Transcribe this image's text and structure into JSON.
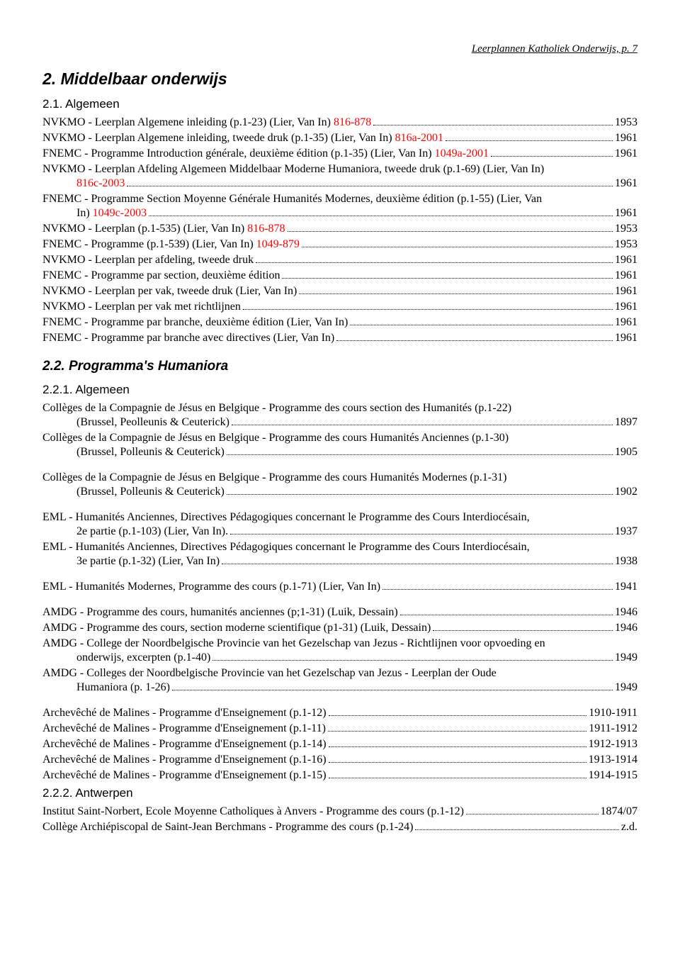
{
  "colors": {
    "text": "#000000",
    "ref": "#ff0000",
    "bg": "#ffffff"
  },
  "header": "Leerplannen Katholiek Onderwijs, p. 7",
  "s2": {
    "title": "2. Middelbaar onderwijs",
    "s21": {
      "title": "2.1. Algemeen",
      "entries": [
        {
          "pre": "NVKMO - Leerplan Algemene inleiding (p.1-23) (Lier, Van In) ",
          "ref": "816-878",
          "year": "1953"
        },
        {
          "pre": "NVKMO - Leerplan Algemene inleiding, tweede druk (p.1-35) (Lier, Van In) ",
          "ref": "816a-2001",
          "year": "1961"
        },
        {
          "pre": "FNEMC - Programme Introduction générale, deuxième édition (p.1-35) (Lier, Van In) ",
          "ref": "1049a-2001",
          "year": "1961"
        },
        {
          "pre": "NVKMO - Leerplan Afdeling Algemeen Middelbaar Moderne Humaniora, tweede druk (p.1-69) (Lier, Van In)",
          "cont": "",
          "ref": "816c-2003",
          "year": "1961"
        },
        {
          "pre": "FNEMC - Programme Section Moyenne Générale Humanités Modernes, deuxième édition (p.1-55) (Lier, Van",
          "cont": "In) ",
          "ref": "1049c-2003",
          "year": "1961"
        },
        {
          "pre": "NVKMO - Leerplan (p.1-535) (Lier, Van In) ",
          "ref": "816-878",
          "year": "1953"
        },
        {
          "pre": "FNEMC - Programme (p.1-539) (Lier, Van In) ",
          "ref": "1049-879",
          "year": "1953"
        },
        {
          "pre": "NVKMO - Leerplan per afdeling, tweede druk",
          "year": "1961"
        },
        {
          "pre": "FNEMC - Programme par section, deuxième édition",
          "year": "1961"
        },
        {
          "pre": "NVKMO - Leerplan per vak, tweede druk (Lier, Van In)",
          "year": "1961"
        },
        {
          "pre": "NVKMO - Leerplan per vak met richtlijnen",
          "year": "1961"
        },
        {
          "pre": "FNEMC - Programme par branche, deuxième édition (Lier, Van In)",
          "year": "1961"
        },
        {
          "pre": "FNEMC - Programme par branche avec directives (Lier, Van In)",
          "year": "1961"
        }
      ]
    },
    "s22": {
      "title": "2.2. Programma's Humaniora",
      "s221": {
        "title": "2.2.1. Algemeen",
        "groups": [
          [
            {
              "pre": "Collèges de la Compagnie de Jésus en Belgique - Programme des cours section des Humanités (p.1-22)",
              "cont": "(Brussel, Peolleunis & Ceuterick)",
              "year": "1897"
            },
            {
              "pre": "Collèges de la Compagnie de Jésus en Belgique - Programme des cours Humanités Anciennes (p.1-30)",
              "cont": "(Brussel, Polleunis & Ceuterick)",
              "year": "1905"
            }
          ],
          [
            {
              "pre": "Collèges de la Compagnie de Jésus en Belgique - Programme des cours Humanités Modernes (p.1-31)",
              "cont": "(Brussel, Polleunis & Ceuterick)",
              "year": "1902"
            }
          ],
          [
            {
              "pre": "EML - Humanités Anciennes, Directives Pédagogiques concernant le Programme des Cours Interdiocésain,",
              "cont": "2e partie (p.1-103) (Lier, Van In).",
              "year": "1937"
            },
            {
              "pre": "EML - Humanités Anciennes, Directives Pédagogiques concernant le Programme des Cours Interdiocésain,",
              "cont": "3e partie (p.1-32) (Lier, Van In)",
              "year": "1938"
            }
          ],
          [
            {
              "pre": "EML - Humanités Modernes, Programme des cours (p.1-71) (Lier, Van In)",
              "year": "1941"
            }
          ],
          [
            {
              "pre": "AMDG - Programme des cours, humanités anciennes (p;1-31) (Luik, Dessain)",
              "year": "1946"
            },
            {
              "pre": "AMDG - Programme des cours, section moderne scientifique (p1-31) (Luik, Dessain)",
              "year": "1946"
            },
            {
              "pre": "AMDG - College der Noordbelgische Provincie van het Gezelschap van Jezus - Richtlijnen voor opvoeding en",
              "cont": "onderwijs, excerpten (p.1-40)",
              "year": "1949"
            },
            {
              "pre": "AMDG - Colleges der Noordbelgische Provincie van het Gezelschap van Jezus - Leerplan der Oude",
              "cont": "Humaniora (p. 1-26)",
              "year": "1949"
            }
          ],
          [
            {
              "pre": "Archevêché de Malines - Programme d'Enseignement (p.1-12)",
              "year": "1910-1911"
            },
            {
              "pre": "Archevêché de Malines - Programme d'Enseignement (p.1-11)",
              "year": "1911-1912"
            },
            {
              "pre": "Archevêché de Malines - Programme d'Enseignement (p.1-14)",
              "year": "1912-1913"
            },
            {
              "pre": "Archevêché de Malines - Programme d'Enseignement (p.1-16)",
              "year": "1913-1914"
            },
            {
              "pre": "Archevêché de Malines - Programme d'Enseignement (p.1-15)",
              "year": "1914-1915"
            }
          ]
        ]
      },
      "s222": {
        "title": "2.2.2. Antwerpen",
        "entries": [
          {
            "pre": "Institut Saint-Norbert, Ecole Moyenne Catholiques à Anvers - Programme des cours (p.1-12)",
            "year": "1874/07"
          },
          {
            "pre": "Collège Archiépiscopal de Saint-Jean Berchmans - Programme des cours (p.1-24)",
            "year": "z.d."
          }
        ]
      }
    }
  }
}
